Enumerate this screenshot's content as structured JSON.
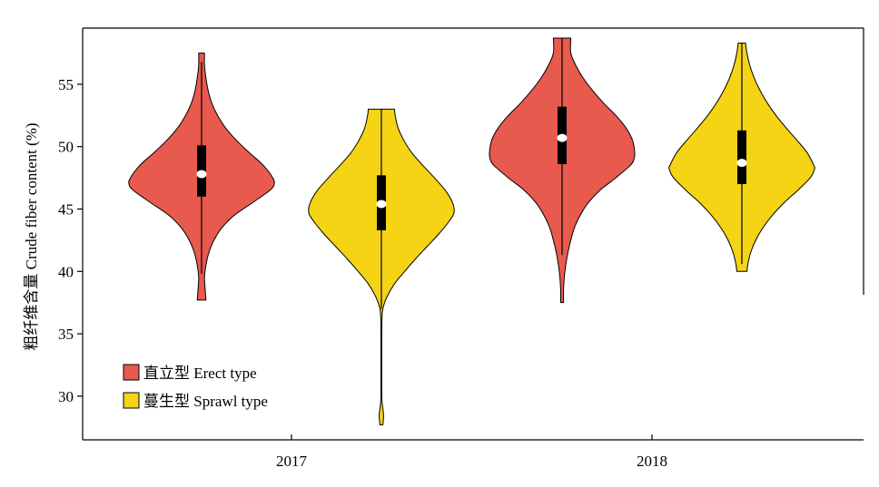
{
  "chart_data": {
    "type": "violin",
    "ylabel": "粗纤维含量 Crude fiber content (%)",
    "xlabel": "",
    "categories": [
      "2017",
      "2018"
    ],
    "ylim": [
      26.5,
      59.5
    ],
    "yticks": [
      30,
      35,
      40,
      45,
      50,
      55
    ],
    "grid": false,
    "legend_position": "bottom-left",
    "series": [
      {
        "name": "直立型 Erect type",
        "color": "#E8594E",
        "violins": [
          {
            "category": "2017",
            "min": 37.7,
            "max": 57.5,
            "q1": 46.0,
            "median": 47.8,
            "q3": 50.1,
            "whisker_low": 39.8,
            "whisker_high": 56.8,
            "profile": [
              [
                37.7,
                0.06
              ],
              [
                38.5,
                0.05
              ],
              [
                39.5,
                0.04
              ],
              [
                40.5,
                0.06
              ],
              [
                41.5,
                0.1
              ],
              [
                42.5,
                0.17
              ],
              [
                43.5,
                0.28
              ],
              [
                44.5,
                0.45
              ],
              [
                45.5,
                0.7
              ],
              [
                46.5,
                0.94
              ],
              [
                47.0,
                1.0
              ],
              [
                47.5,
                0.98
              ],
              [
                48.5,
                0.85
              ],
              [
                49.5,
                0.66
              ],
              [
                50.5,
                0.48
              ],
              [
                51.5,
                0.33
              ],
              [
                52.5,
                0.22
              ],
              [
                53.5,
                0.14
              ],
              [
                54.5,
                0.09
              ],
              [
                55.5,
                0.06
              ],
              [
                56.5,
                0.04
              ],
              [
                57.5,
                0.04
              ]
            ]
          },
          {
            "category": "2018",
            "min": 37.5,
            "max": 58.7,
            "q1": 48.6,
            "median": 50.7,
            "q3": 53.2,
            "whisker_low": 41.3,
            "whisker_high": 58.7,
            "profile": [
              [
                37.5,
                0.02
              ],
              [
                38.5,
                0.02
              ],
              [
                39.5,
                0.03
              ],
              [
                40.5,
                0.05
              ],
              [
                41.5,
                0.08
              ],
              [
                42.5,
                0.12
              ],
              [
                43.5,
                0.17
              ],
              [
                44.5,
                0.25
              ],
              [
                45.5,
                0.36
              ],
              [
                46.5,
                0.52
              ],
              [
                47.5,
                0.74
              ],
              [
                48.5,
                0.94
              ],
              [
                49.0,
                0.99
              ],
              [
                49.5,
                1.0
              ],
              [
                50.5,
                0.97
              ],
              [
                51.5,
                0.88
              ],
              [
                52.5,
                0.74
              ],
              [
                53.5,
                0.57
              ],
              [
                54.5,
                0.42
              ],
              [
                55.5,
                0.29
              ],
              [
                56.5,
                0.19
              ],
              [
                57.5,
                0.12
              ],
              [
                58.7,
                0.12
              ]
            ]
          }
        ]
      },
      {
        "name": "蔓生型 Sprawl type",
        "color": "#F5D315",
        "violins": [
          {
            "category": "2017",
            "min": 27.7,
            "max": 53.0,
            "q1": 43.3,
            "median": 45.4,
            "q3": 47.7,
            "whisker_low": 37.0,
            "whisker_high": 53.0,
            "profile": [
              [
                27.7,
                0.02
              ],
              [
                28.5,
                0.03
              ],
              [
                29.5,
                0.01
              ],
              [
                30.5,
                0.006
              ],
              [
                32.0,
                0.006
              ],
              [
                34.0,
                0.006
              ],
              [
                36.0,
                0.008
              ],
              [
                37.0,
                0.02
              ],
              [
                38.0,
                0.08
              ],
              [
                39.0,
                0.18
              ],
              [
                40.0,
                0.32
              ],
              [
                41.0,
                0.47
              ],
              [
                42.0,
                0.63
              ],
              [
                43.0,
                0.79
              ],
              [
                44.0,
                0.93
              ],
              [
                44.7,
                1.0
              ],
              [
                45.5,
                0.98
              ],
              [
                46.5,
                0.88
              ],
              [
                47.5,
                0.73
              ],
              [
                48.5,
                0.57
              ],
              [
                49.5,
                0.42
              ],
              [
                50.5,
                0.31
              ],
              [
                51.5,
                0.23
              ],
              [
                52.5,
                0.19
              ],
              [
                53.0,
                0.18
              ]
            ]
          },
          {
            "category": "2018",
            "min": 40.0,
            "max": 58.3,
            "q1": 47.0,
            "median": 48.7,
            "q3": 51.3,
            "whisker_low": 40.6,
            "whisker_high": 58.3,
            "profile": [
              [
                40.0,
                0.07
              ],
              [
                40.5,
                0.08
              ],
              [
                41.5,
                0.12
              ],
              [
                42.5,
                0.19
              ],
              [
                43.5,
                0.29
              ],
              [
                44.5,
                0.42
              ],
              [
                45.5,
                0.58
              ],
              [
                46.5,
                0.77
              ],
              [
                47.5,
                0.94
              ],
              [
                48.2,
                1.0
              ],
              [
                48.5,
                0.99
              ],
              [
                49.5,
                0.9
              ],
              [
                50.5,
                0.76
              ],
              [
                51.5,
                0.61
              ],
              [
                52.5,
                0.47
              ],
              [
                53.5,
                0.35
              ],
              [
                54.5,
                0.25
              ],
              [
                55.5,
                0.17
              ],
              [
                56.5,
                0.11
              ],
              [
                57.5,
                0.07
              ],
              [
                58.3,
                0.05
              ]
            ]
          }
        ]
      }
    ]
  }
}
